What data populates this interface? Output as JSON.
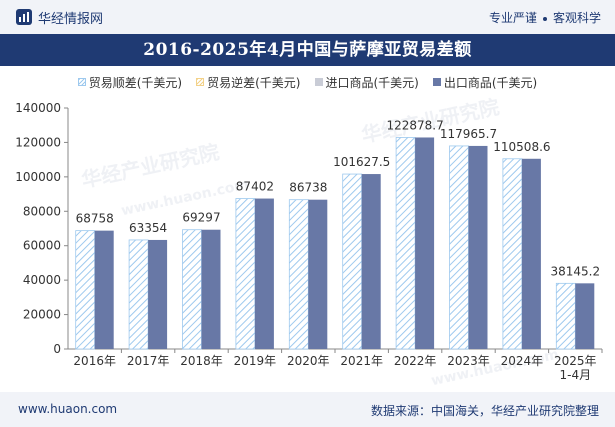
{
  "header": {
    "brand": "华经情报网",
    "slogan_left": "专业严谨",
    "slogan_right": "客观科学"
  },
  "title": "2016-2025年4月中国与萨摩亚贸易差额",
  "legend": {
    "surplus": "贸易顺差(千美元)",
    "deficit": "贸易逆差(千美元)",
    "import": "进口商品(千美元)",
    "export": "出口商品(千美元)"
  },
  "watermarks": [
    "华经产业研究院",
    "www.huaon.com"
  ],
  "colors": {
    "surplus": "#9ec9ee",
    "deficit": "#f3d28a",
    "import": "#c9ccd6",
    "export": "#6878a6",
    "brand": "#1f3a73"
  },
  "chart_data": {
    "type": "bar",
    "categories": [
      "2016年",
      "2017年",
      "2018年",
      "2019年",
      "2020年",
      "2021年",
      "2022年",
      "2023年",
      "2024年",
      "2025年\n1-4月"
    ],
    "series": [
      {
        "name": "贸易顺差(千美元)",
        "values": [
          68758,
          63354,
          69297,
          87402,
          86738,
          101627.5,
          122878.7,
          117965.7,
          110508.6,
          38145.2
        ]
      },
      {
        "name": "出口商品(千美元)",
        "values": [
          68758,
          63354,
          69297,
          87402,
          86738,
          101627.5,
          122878.7,
          117965.7,
          110508.6,
          38145.2
        ]
      }
    ],
    "data_labels": [
      "68758",
      "63354",
      "69297",
      "87402",
      "86738",
      "101627.5",
      "122878.7",
      "117965.7",
      "110508.6",
      "38145.2"
    ],
    "ylim": [
      0,
      140000
    ],
    "yticks": [
      0,
      20000,
      40000,
      60000,
      80000,
      100000,
      120000,
      140000
    ],
    "grid": false,
    "legend_position": "top"
  },
  "footer": {
    "site": "www.huaon.com",
    "source": "数据来源：中国海关，华经产业研究院整理"
  }
}
